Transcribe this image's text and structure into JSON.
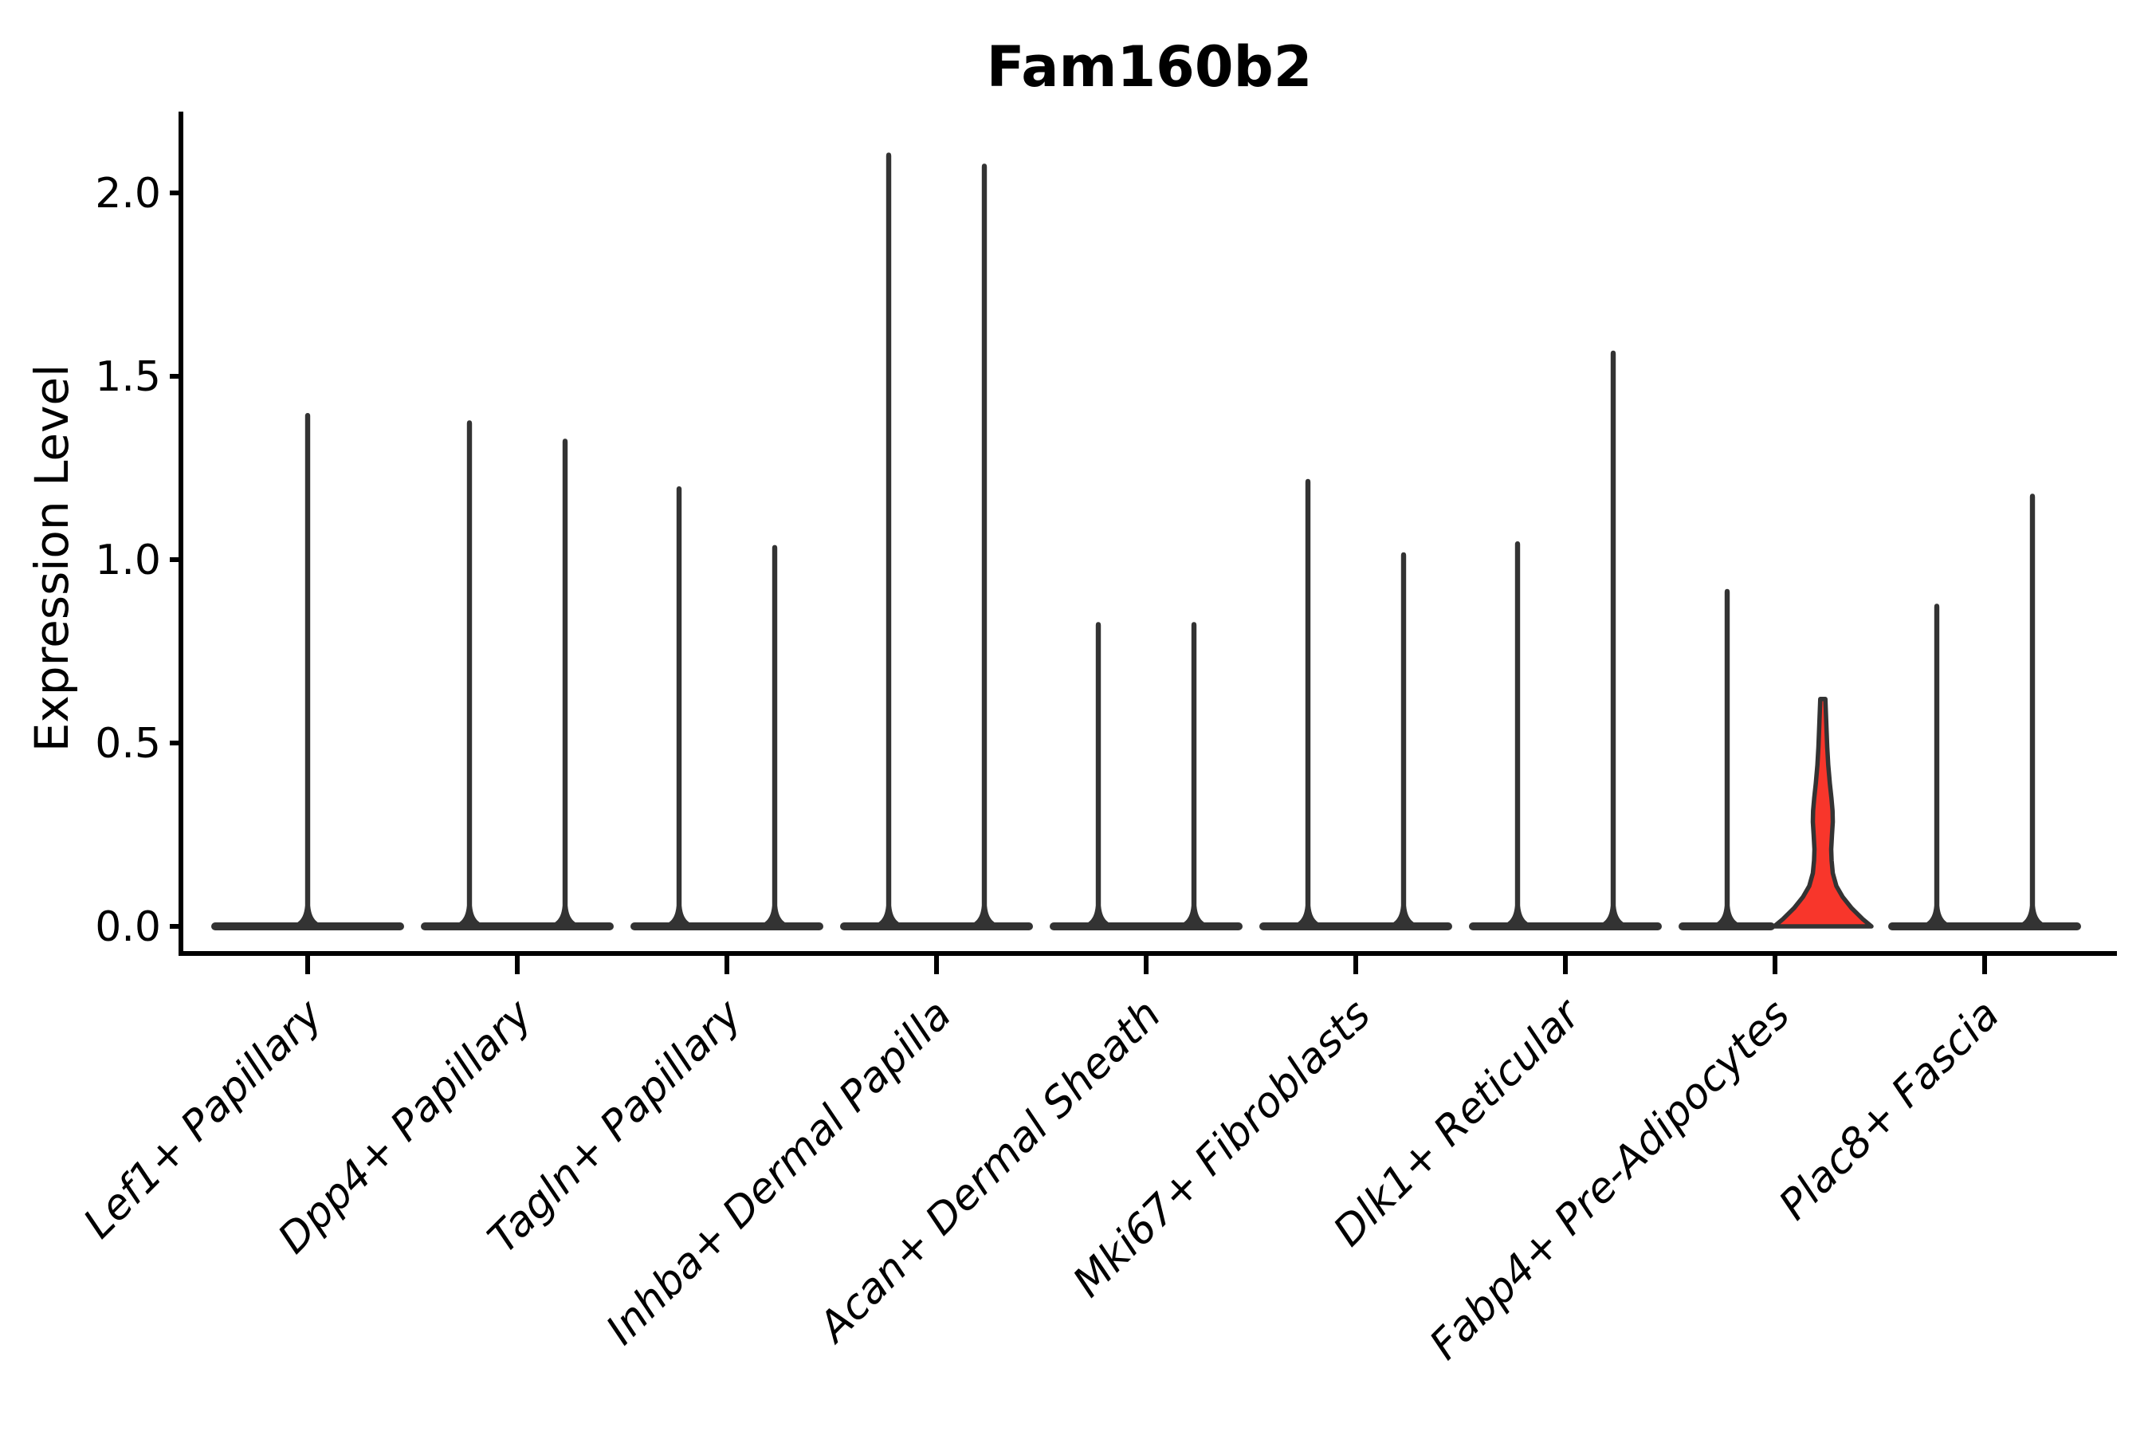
{
  "chart_data": {
    "type": "violin",
    "title": "Fam160b2",
    "ylabel": "Expression Level",
    "xlabel": "",
    "grid": false,
    "legend_position": "none",
    "ylim": [
      -0.07,
      2.22
    ],
    "yticks": [
      "0.0",
      "0.5",
      "1.0",
      "1.5",
      "2.0"
    ],
    "ytick_values": [
      0.0,
      0.5,
      1.0,
      1.5,
      2.0
    ],
    "categories": [
      "Lef1+ Papillary",
      "Dpp4+ Papillary",
      "Tagln+ Papillary",
      "Inhba+ Dermal Papilla",
      "Acan+ Dermal Sheath",
      "Mki67+ Fibroblasts",
      "Dlk1+ Reticular",
      "Fabp4+ Pre-Adipocytes",
      "Plac8+ Fascia"
    ],
    "violins": [
      {
        "label": "Lef1+ Papillary",
        "base_extent": [
          -121,
          121
        ],
        "spikes": [
          {
            "offset": 0,
            "max": 1.4
          }
        ]
      },
      {
        "label": "Dpp4+ Papillary",
        "base_extent": [
          -121,
          121
        ],
        "spikes": [
          {
            "offset": -60,
            "max": 1.38
          },
          {
            "offset": 60,
            "max": 1.33
          }
        ]
      },
      {
        "label": "Tagln+ Papillary",
        "base_extent": [
          -121,
          121
        ],
        "spikes": [
          {
            "offset": -60,
            "max": 1.2
          },
          {
            "offset": 60,
            "max": 1.04
          }
        ]
      },
      {
        "label": "Inhba+ Dermal Papilla",
        "base_extent": [
          -121,
          121
        ],
        "spikes": [
          {
            "offset": -60,
            "max": 2.11
          },
          {
            "offset": 60,
            "max": 2.08
          }
        ]
      },
      {
        "label": "Acan+ Dermal Sheath",
        "base_extent": [
          -121,
          121
        ],
        "spikes": [
          {
            "offset": -60,
            "max": 0.83
          },
          {
            "offset": 60,
            "max": 0.83
          }
        ]
      },
      {
        "label": "Mki67+ Fibroblasts",
        "base_extent": [
          -121,
          121
        ],
        "spikes": [
          {
            "offset": -60,
            "max": 1.22
          },
          {
            "offset": 60,
            "max": 1.02
          }
        ]
      },
      {
        "label": "Dlk1+ Reticular",
        "base_extent": [
          -121,
          121
        ],
        "spikes": [
          {
            "offset": -60,
            "max": 1.05
          },
          {
            "offset": 60,
            "max": 1.57
          }
        ]
      },
      {
        "label": "Fabp4+ Pre-Adipocytes",
        "base_extent": [
          -121,
          0
        ],
        "spikes": [
          {
            "offset": -60,
            "max": 0.92
          }
        ],
        "highlight_violin": {
          "offset": 60,
          "max": 0.62,
          "profile": [
            [
              0.0,
              61
            ],
            [
              0.02,
              50
            ],
            [
              0.05,
              36
            ],
            [
              0.08,
              25
            ],
            [
              0.11,
              17
            ],
            [
              0.145,
              12.5
            ],
            [
              0.18,
              11
            ],
            [
              0.21,
              10.5
            ],
            [
              0.25,
              11.5
            ],
            [
              0.285,
              12.5
            ],
            [
              0.315,
              12.2
            ],
            [
              0.35,
              10.8
            ],
            [
              0.39,
              8.8
            ],
            [
              0.44,
              6.8
            ],
            [
              0.49,
              5.5
            ],
            [
              0.54,
              4.6
            ],
            [
              0.585,
              3.8
            ],
            [
              0.62,
              3.2
            ]
          ]
        }
      },
      {
        "label": "Plac8+ Fascia",
        "base_extent": [
          -121,
          121
        ],
        "spikes": [
          {
            "offset": -60,
            "max": 0.88
          },
          {
            "offset": 60,
            "max": 1.18
          }
        ]
      }
    ],
    "colors": {
      "violin_line": "#333333",
      "axis": "#000000",
      "highlight_fill": "#f8362b",
      "background": "#ffffff"
    }
  }
}
